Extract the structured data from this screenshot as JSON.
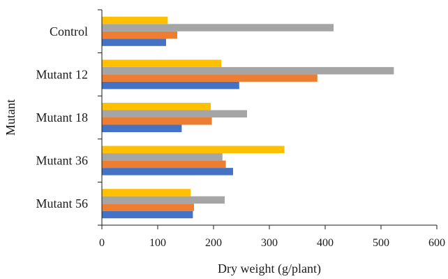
{
  "chart_data": {
    "type": "bar",
    "orientation": "horizontal",
    "categories": [
      "Control",
      "Mutant 12",
      "Mutant 18",
      "Mutant 36",
      "Mutant 56"
    ],
    "series": [
      {
        "color": "#4472C4",
        "values": [
          115,
          246,
          143,
          235,
          163
        ]
      },
      {
        "color": "#ED7D31",
        "values": [
          135,
          386,
          197,
          222,
          165
        ]
      },
      {
        "color": "#A5A5A5",
        "values": [
          415,
          523,
          260,
          216,
          220
        ]
      },
      {
        "color": "#FFC000",
        "values": [
          118,
          214,
          195,
          327,
          159
        ]
      }
    ],
    "xlabel": "Dry weight (g/plant)",
    "ylabel": "Mutant",
    "xlim": [
      0,
      600
    ],
    "xticks": [
      "0",
      "100",
      "200",
      "300",
      "400",
      "500",
      "600"
    ],
    "grid": false,
    "legend": "none"
  }
}
